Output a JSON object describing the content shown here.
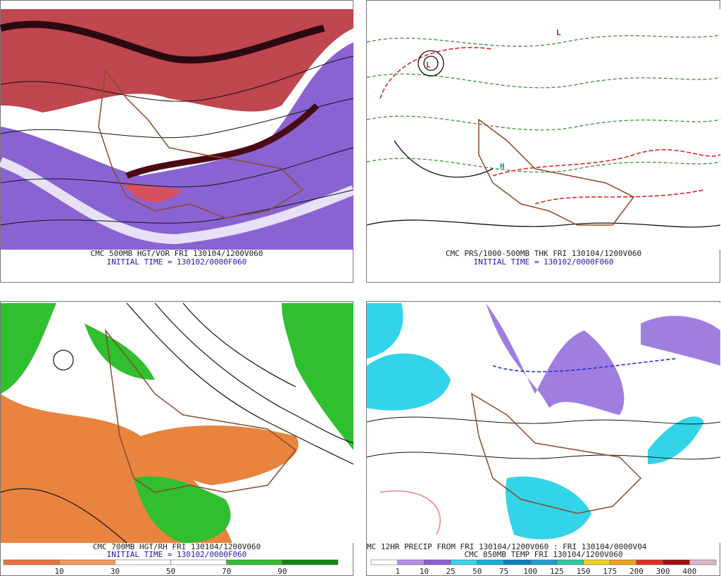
{
  "panels": [
    {
      "caption": "CMC 500MB HGT/VOR FRI 130104/1200V060",
      "subcaption": "INITIAL TIME = 130102/0000F060"
    },
    {
      "caption": "CMC PRS/1000-500MB THK FRI 130104/1200V060",
      "subcaption": "INITIAL TIME = 130102/0000F060"
    },
    {
      "caption": "CMC 700MB HGT/RH FRI 130104/1200V060",
      "subcaption": "INITIAL TIME = 130102/0000F060",
      "colorbar": {
        "labels": [
          "10",
          "30",
          "50",
          "70",
          "90"
        ],
        "colors": [
          "#e8743a",
          "#f49a5a",
          "#ffffff",
          "#ffffff",
          "#2fbf2f",
          "#0a8a0a"
        ]
      }
    },
    {
      "caption": "MC 12HR PRECIP FROM FRI 130104/1200V060 : FRI 130104/0000V04",
      "subcaption": "CMC 850MB TEMP FRI 130104/1200V060",
      "colorbar": {
        "labels": [
          "1",
          "10",
          "25",
          "50",
          "75",
          "100",
          "125",
          "150",
          "175",
          "200",
          "300",
          "400"
        ],
        "colors": [
          "#ffffff",
          "#b28ee8",
          "#8a5fd6",
          "#34d4e8",
          "#14b0d8",
          "#0a7cc0",
          "#1aa0d0",
          "#2ec8a0",
          "#f0d020",
          "#f0a020",
          "#e03020",
          "#a01010",
          "#d8b8c8"
        ]
      }
    }
  ]
}
